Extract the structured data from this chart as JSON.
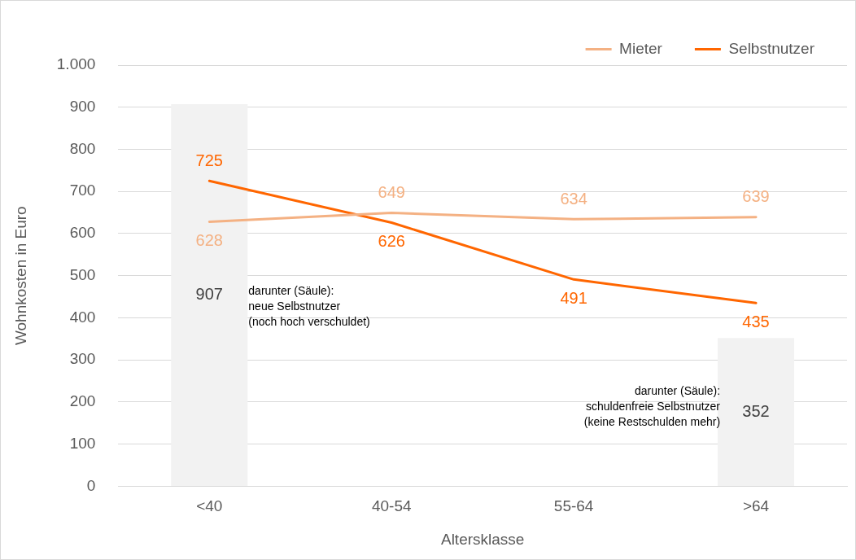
{
  "chart_data": {
    "type": "line",
    "xlabel": "Altersklasse",
    "ylabel": "Wohnkosten in Euro",
    "categories": [
      "<40",
      "40-54",
      "55-64",
      ">64"
    ],
    "series": [
      {
        "type": "bar",
        "color": "#f2f2f2",
        "values": [
          907,
          null,
          null,
          352
        ]
      },
      {
        "name": "Mieter",
        "color": "#f4b183",
        "values": [
          628,
          649,
          634,
          639
        ]
      },
      {
        "name": "Selbstnutzer",
        "color": "#ff6600",
        "values": [
          725,
          626,
          491,
          435
        ]
      }
    ],
    "ylim": [
      0,
      1000
    ],
    "yticks": [
      0,
      100,
      200,
      300,
      400,
      500,
      600,
      700,
      800,
      900,
      {
        "value": 1000,
        "label": "1.000"
      }
    ],
    "grid": "y",
    "legend": "top right",
    "marker": "none",
    "line_style": "solid",
    "data_labels": true,
    "annotations": [
      "darunter (Säule):\nneue Selbstnutzer\n(noch hoch verschuldet)",
      "darunter (Säule):\nschuldenfreie Selbstnutzer\n(keine Restschulden mehr)"
    ]
  }
}
